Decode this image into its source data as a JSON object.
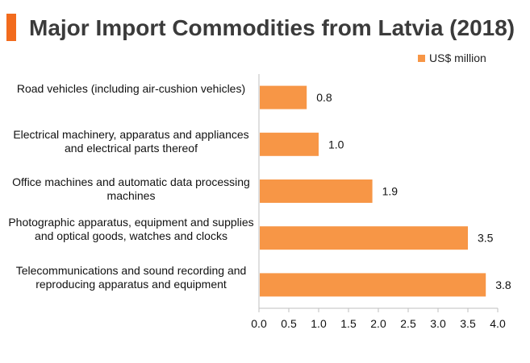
{
  "header": {
    "title": "Major Import Commodities from Latvia (2018)"
  },
  "colors": {
    "bar": "#f79646",
    "accent": "#f26b1d",
    "axis": "#bfbfbf"
  },
  "chart_data": {
    "type": "bar",
    "orientation": "horizontal",
    "title": "Major Import Commodities from Latvia (2018)",
    "categories": [
      "Road vehicles (including air-cushion vehicles)",
      "Electrical machinery, apparatus and appliances and electrical parts thereof",
      "Office machines and automatic data processing machines",
      "Photographic apparatus, equipment and supplies and optical goods, watches and clocks",
      "Telecommunications and sound recording and reproducing apparatus and equipment"
    ],
    "series": [
      {
        "name": "US$ million",
        "values": [
          0.8,
          1.0,
          1.9,
          3.5,
          3.8
        ]
      }
    ],
    "data_labels": [
      "0.8",
      "1.0",
      "1.9",
      "3.5",
      "3.8"
    ],
    "xlim": [
      0,
      4.0
    ],
    "xticks": [
      "0.0",
      "0.5",
      "1.0",
      "1.5",
      "2.0",
      "2.5",
      "3.0",
      "3.5",
      "4.0"
    ],
    "xlabel": "",
    "ylabel": "",
    "legend_position": "top-right",
    "grid": false
  }
}
